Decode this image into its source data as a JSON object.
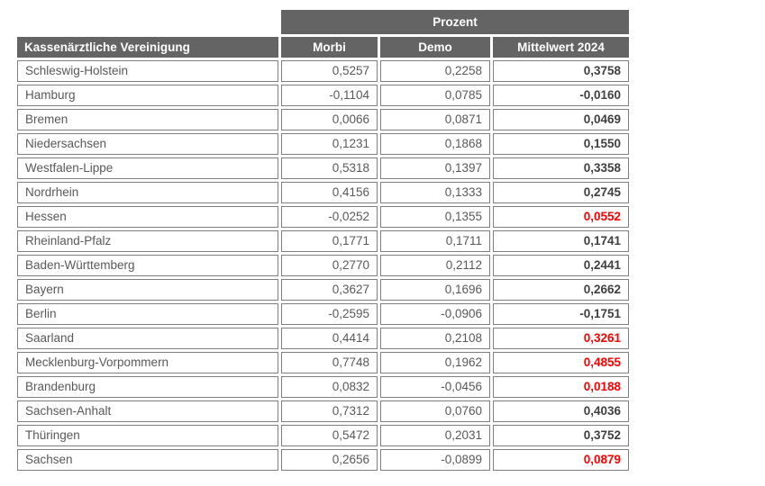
{
  "colors": {
    "header_bg": "#646464",
    "header_text": "#ffffff",
    "cell_border": "#7f7f7f",
    "text": "#595959",
    "bold_text": "#404040",
    "highlight": "#ff0000",
    "page_bg": "#ffffff"
  },
  "table": {
    "group_header": "Prozent",
    "columns": [
      "Kassenärztliche Vereinigung",
      "Morbi",
      "Demo",
      "Mittelwert 2024"
    ],
    "rows": [
      {
        "name": "Schleswig-Holstein",
        "morbi": "0,5257",
        "demo": "0,2258",
        "mittelwert": "0,3758",
        "highlight": false
      },
      {
        "name": "Hamburg",
        "morbi": "-0,1104",
        "demo": "0,0785",
        "mittelwert": "-0,0160",
        "highlight": false
      },
      {
        "name": "Bremen",
        "morbi": "0,0066",
        "demo": "0,0871",
        "mittelwert": "0,0469",
        "highlight": false
      },
      {
        "name": "Niedersachsen",
        "morbi": "0,1231",
        "demo": "0,1868",
        "mittelwert": "0,1550",
        "highlight": false
      },
      {
        "name": "Westfalen-Lippe",
        "morbi": "0,5318",
        "demo": "0,1397",
        "mittelwert": "0,3358",
        "highlight": false
      },
      {
        "name": "Nordrhein",
        "morbi": "0,4156",
        "demo": "0,1333",
        "mittelwert": "0,2745",
        "highlight": false
      },
      {
        "name": "Hessen",
        "morbi": "-0,0252",
        "demo": "0,1355",
        "mittelwert": "0,0552",
        "highlight": true
      },
      {
        "name": "Rheinland-Pfalz",
        "morbi": "0,1771",
        "demo": "0,1711",
        "mittelwert": "0,1741",
        "highlight": false
      },
      {
        "name": "Baden-Württemberg",
        "morbi": "0,2770",
        "demo": "0,2112",
        "mittelwert": "0,2441",
        "highlight": false
      },
      {
        "name": "Bayern",
        "morbi": "0,3627",
        "demo": "0,1696",
        "mittelwert": "0,2662",
        "highlight": false
      },
      {
        "name": "Berlin",
        "morbi": "-0,2595",
        "demo": "-0,0906",
        "mittelwert": "-0,1751",
        "highlight": false
      },
      {
        "name": "Saarland",
        "morbi": "0,4414",
        "demo": "0,2108",
        "mittelwert": "0,3261",
        "highlight": true
      },
      {
        "name": "Mecklenburg-Vorpommern",
        "morbi": "0,7748",
        "demo": "0,1962",
        "mittelwert": "0,4855",
        "highlight": true
      },
      {
        "name": "Brandenburg",
        "morbi": "0,0832",
        "demo": "-0,0456",
        "mittelwert": "0,0188",
        "highlight": true
      },
      {
        "name": "Sachsen-Anhalt",
        "morbi": "0,7312",
        "demo": "0,0760",
        "mittelwert": "0,4036",
        "highlight": false
      },
      {
        "name": "Thüringen",
        "morbi": "0,5472",
        "demo": "0,2031",
        "mittelwert": "0,3752",
        "highlight": false
      },
      {
        "name": "Sachsen",
        "morbi": "0,2656",
        "demo": "-0,0899",
        "mittelwert": "0,0879",
        "highlight": true
      }
    ]
  }
}
